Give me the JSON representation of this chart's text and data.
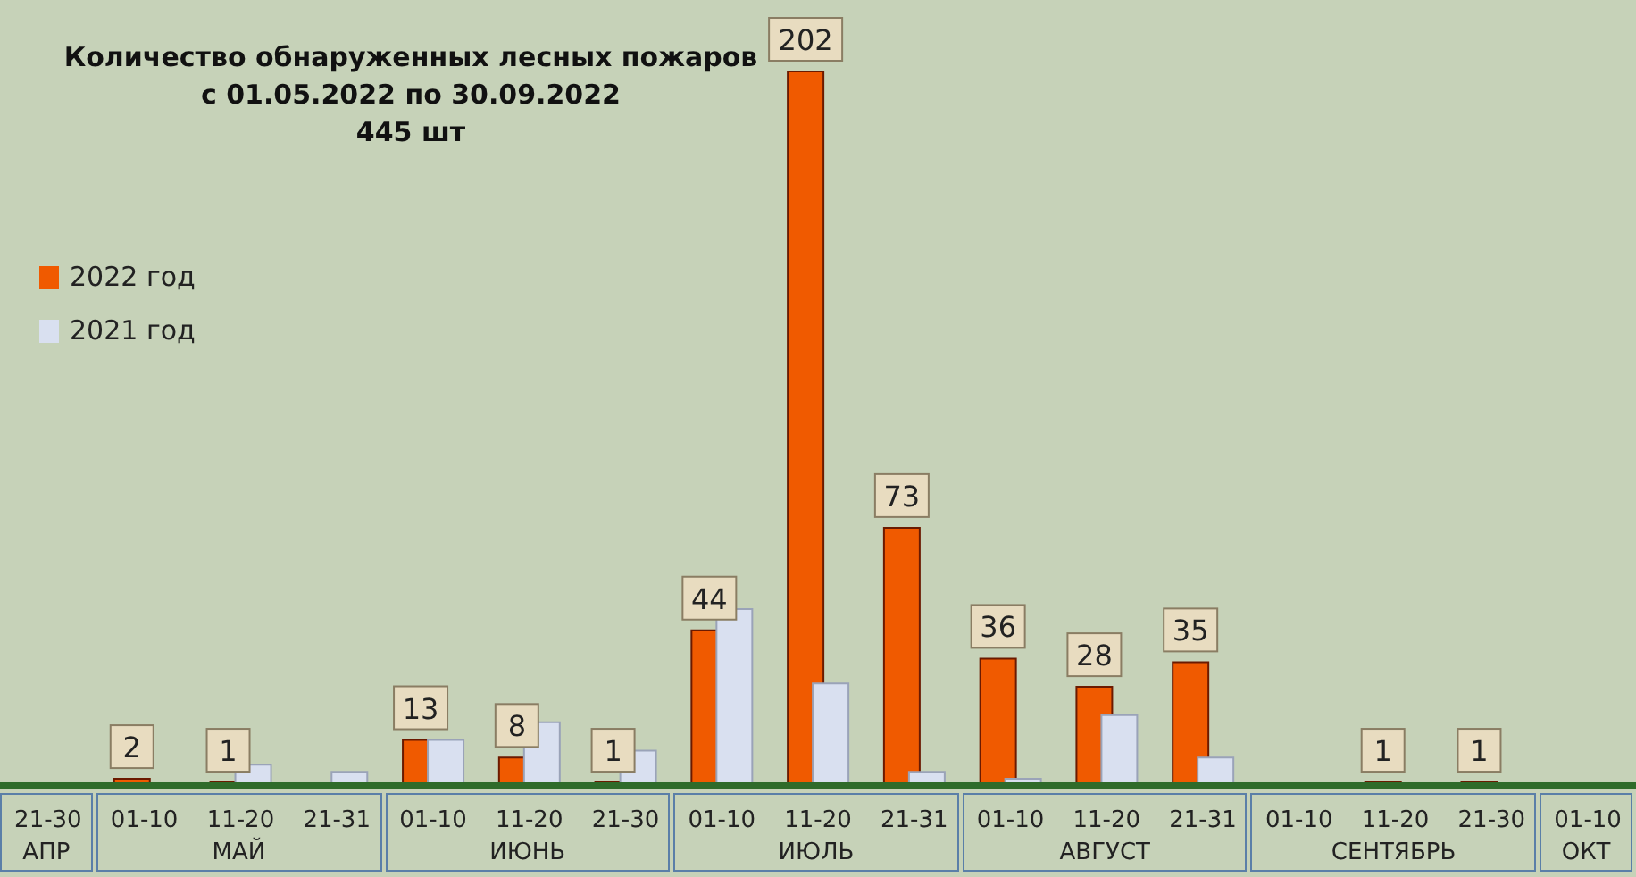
{
  "chart_data": {
    "type": "bar",
    "title": "Количество обнаруженных лесных пожаров",
    "subtitle": "с 01.05.2022  по  30.09.2022",
    "annotations": [
      "445 шт",
      "АПР",
      "МАЙ",
      "ИЮНЬ",
      "ИЮЛЬ",
      "АВГУСТ",
      "СЕНТЯБРЬ",
      "ОКТ"
    ],
    "categories": [
      "21-30",
      "01-10",
      "11-20",
      "21-31",
      "01-10",
      "11-20",
      "21-30",
      "01-10",
      "11-20",
      "21-31",
      "01-10",
      "11-20",
      "21-31",
      "01-10",
      "11-20",
      "21-30",
      "01-10"
    ],
    "series": [
      {
        "name": "2022 год",
        "color": "#f05a00",
        "values": [
          0,
          2,
          1,
          0,
          13,
          8,
          1,
          44,
          202,
          73,
          36,
          28,
          35,
          0,
          1,
          1,
          0
        ],
        "value_labels": [
          null,
          "2",
          "1",
          null,
          "13",
          "8",
          "1",
          "44",
          "202",
          "73",
          "36",
          "28",
          "35",
          null,
          "1",
          "1",
          null
        ]
      },
      {
        "name": "2021 год",
        "color": "#d9e0f0",
        "values": [
          null,
          0,
          6,
          4,
          13,
          18,
          10,
          50,
          29,
          4,
          2,
          20,
          8,
          0,
          0,
          0,
          null
        ]
      }
    ],
    "legend": "left"
  }
}
